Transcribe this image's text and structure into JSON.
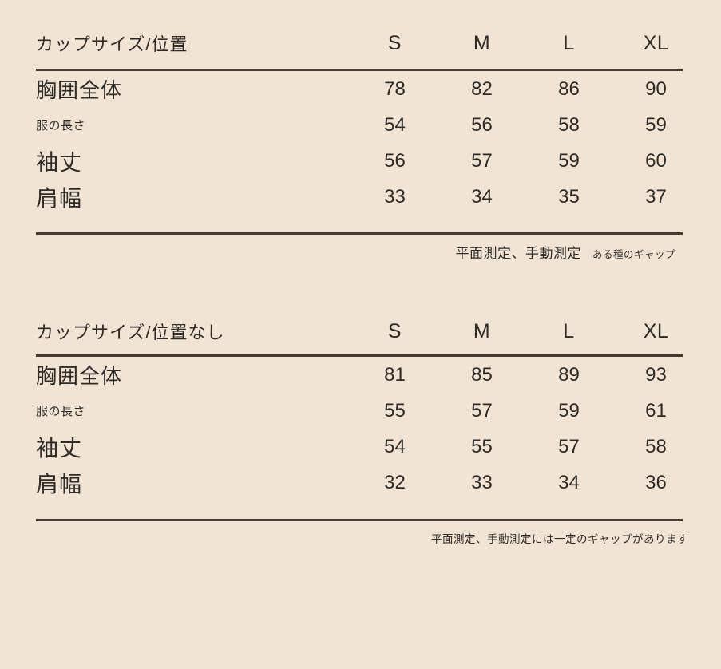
{
  "page": {
    "background_color": "#f2e4d4",
    "text_color": "#2f2b27",
    "divider_color": "#463b31"
  },
  "tables": [
    {
      "title": "カップサイズ/位置",
      "columns": [
        "S",
        "M",
        "L",
        "XL"
      ],
      "rows": [
        {
          "label": "胸囲全体",
          "values": [
            "78",
            "82",
            "86",
            "90"
          ]
        },
        {
          "label": "服の長さ",
          "values": [
            "54",
            "56",
            "58",
            "59"
          ]
        },
        {
          "label": "袖丈",
          "values": [
            "56",
            "57",
            "59",
            "60"
          ]
        },
        {
          "label": "肩幅",
          "values": [
            "33",
            "34",
            "35",
            "37"
          ]
        }
      ],
      "footnote_main": "平面測定、手動測定",
      "footnote_small": "ある種のギャップ"
    },
    {
      "title": "カップサイズ/位置なし",
      "columns": [
        "S",
        "M",
        "L",
        "XL"
      ],
      "rows": [
        {
          "label": "胸囲全体",
          "values": [
            "81",
            "85",
            "89",
            "93"
          ]
        },
        {
          "label": "服の長さ",
          "values": [
            "55",
            "57",
            "59",
            "61"
          ]
        },
        {
          "label": "袖丈",
          "values": [
            "54",
            "55",
            "57",
            "58"
          ]
        },
        {
          "label": "肩幅",
          "values": [
            "32",
            "33",
            "34",
            "36"
          ]
        }
      ],
      "footnote": "平面測定、手動測定には一定のギャップがあります"
    }
  ]
}
